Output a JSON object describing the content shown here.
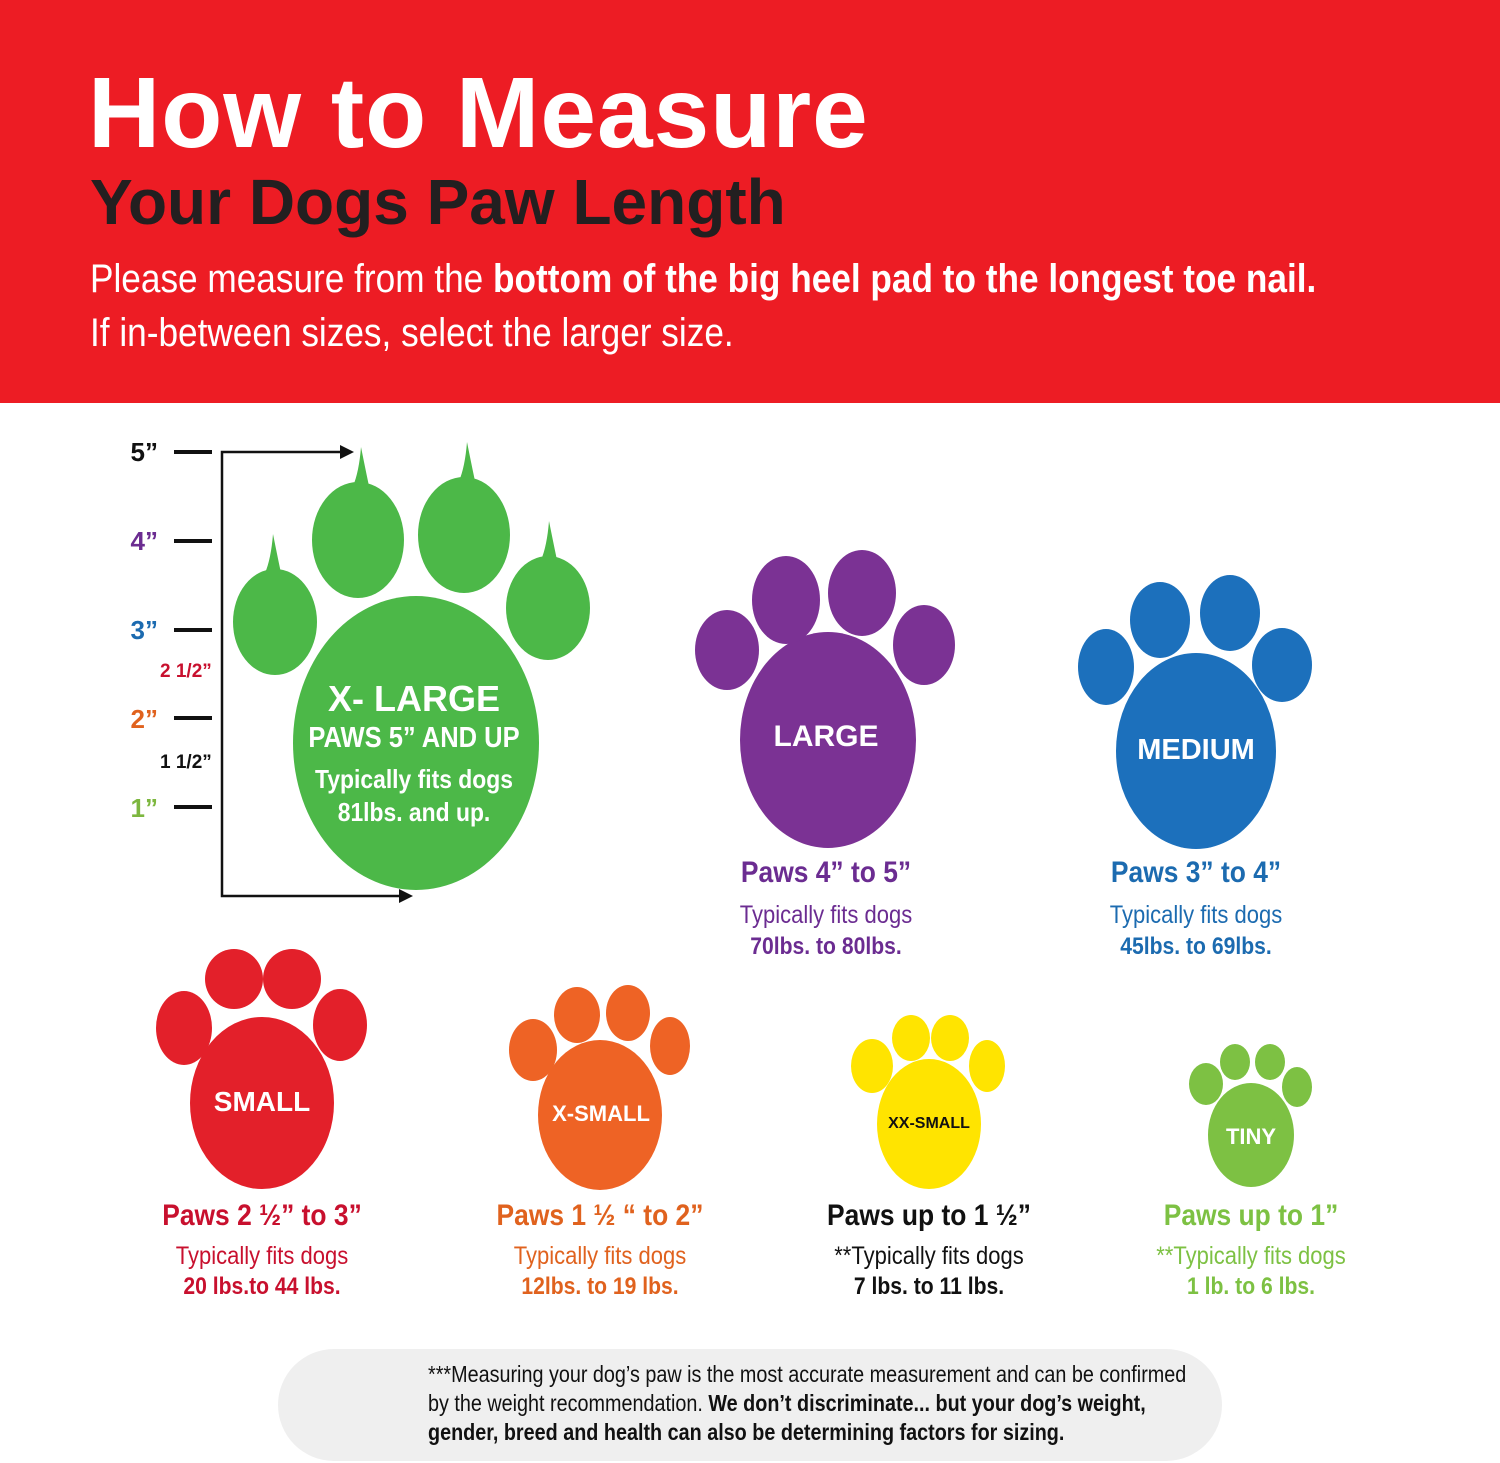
{
  "header": {
    "title": "How to Measure",
    "subtitle": "Your Dogs Paw Length",
    "instruction_prefix": "Please measure from the ",
    "instruction_bold": "bottom of the big heel pad to the longest toe nail.",
    "instruction_line2": "If in-between sizes, select the larger size.",
    "background_color": "#ED1C24"
  },
  "ruler": {
    "marks": [
      {
        "label": "5”",
        "color": "#111111"
      },
      {
        "label": "4”",
        "color": "#6B2C91"
      },
      {
        "label": "3”",
        "color": "#1C6BB0"
      },
      {
        "label": "2 1/2”",
        "color": "#C8102E"
      },
      {
        "label": "2”",
        "color": "#E0621E"
      },
      {
        "label": "1 1/2”",
        "color": "#111111"
      },
      {
        "label": "1”",
        "color": "#7DB73F"
      }
    ]
  },
  "sizes": [
    {
      "name": "X- LARGE",
      "range": "PAWS 5” AND UP",
      "fits": "Typically fits dogs",
      "weight": "81lbs. and up.",
      "color": "#4CB848"
    },
    {
      "name": "LARGE",
      "range": "Paws 4” to  5”",
      "fits": "Typically fits dogs",
      "weight": "70lbs. to 80lbs.",
      "color": "#7B3294"
    },
    {
      "name": "MEDIUM",
      "range": "Paws 3” to 4”",
      "fits": "Typically fits dogs",
      "weight": "45lbs. to 69lbs.",
      "color": "#1C70BC"
    },
    {
      "name": "SMALL",
      "range": "Paws 2 ½” to 3”",
      "fits": "Typically fits dogs",
      "weight": "20 lbs.to 44 lbs.",
      "color": "#E3202A"
    },
    {
      "name": "X-SMALL",
      "range": "Paws 1 ½ “ to 2”",
      "fits": "Typically fits dogs",
      "weight": "12lbs. to 19 lbs.",
      "color": "#EE6325"
    },
    {
      "name": "XX-SMALL",
      "range": "Paws up to 1 ½”",
      "fits": "**Typically fits dogs",
      "weight": "7 lbs. to 11 lbs.",
      "color": "#FFE400"
    },
    {
      "name": "TINY",
      "range": "Paws up to 1”",
      "fits": "**Typically fits dogs",
      "weight": "1 lb. to 6 lbs.",
      "color": "#7DC143"
    }
  ],
  "text_colors": {
    "large": "#6B2C91",
    "medium": "#1C6BB0",
    "small": "#C8102E",
    "xsmall": "#E0621E",
    "xxsmall": "#111111",
    "tiny": "#7DC143"
  },
  "note": {
    "icon": "warning-icon",
    "text_regular": "***Measuring your dog’s paw is the most accurate measurement and can be confirmed by the weight recommendation. ",
    "text_bold": "We don’t discriminate... but your dog’s weight, gender, breed and health can also be determining factors for sizing."
  }
}
